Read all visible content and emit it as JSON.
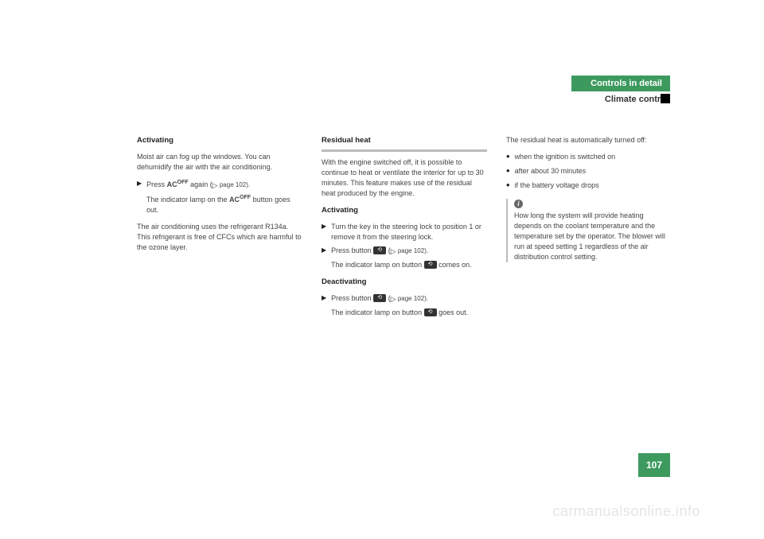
{
  "header": {
    "chapter": "Controls in detail",
    "section": "Climate control"
  },
  "col1": {
    "h1": "Activating",
    "p1": "Moist air can fog up the windows. You can dehumidify the air with the air condition­ing.",
    "step1a": "Press ",
    "ac": "AC",
    "off": "OFF",
    "step1b": " again (",
    "pageref": " page 102).",
    "sub1a": "The indicator lamp on the ",
    "sub1b": " button goes out.",
    "p2": "The air conditioning uses the refrigerant R134a. This refrigerant is free of CFCs which are harmful to the ozone layer."
  },
  "col2": {
    "h1": "Residual heat",
    "p1": "With the engine switched off, it is possible to continue to heat or ventilate the interior for up to 30 minutes. This feature makes use of the residual heat produced by the engine.",
    "h2": "Activating",
    "step1": "Turn the key in the steering lock to position 1 or remove it from the steer­ing lock.",
    "step2a": "Press button ",
    "step2b": " (",
    "pageref": " page 102).",
    "sub2a": "The indicator lamp on button ",
    "sub2b": " comes on.",
    "h3": "Deactivating",
    "step3a": "Press button ",
    "step3b": " (",
    "sub3a": "The indicator lamp on button ",
    "sub3b": " goes out."
  },
  "col3": {
    "p1": "The residual heat is automatically turned off:",
    "b1": "when the ignition is switched on",
    "b2": "after about 30 minutes",
    "b3": "if the battery voltage drops",
    "info": "How long the system will provide heat­ing depends on the coolant tempera­ture and the temperature set by the operator. The blower will run at speed setting 1 regardless of the air distribu­tion control setting."
  },
  "page_number": "107",
  "watermark": "carmanualsonline.info",
  "icons": {
    "rest": "⟲"
  }
}
